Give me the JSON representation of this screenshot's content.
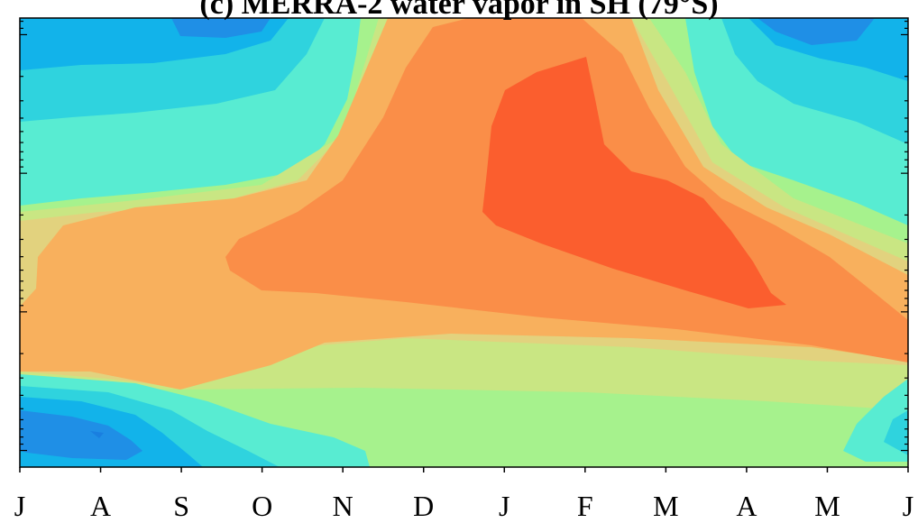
{
  "chart_data": {
    "type": "heatmap",
    "title": "(c) MERRA-2 water vapor in SH (79°S)",
    "x_tick_labels": [
      "J",
      "A",
      "S",
      "O",
      "N",
      "D",
      "J",
      "F",
      "M",
      "A",
      "M",
      "J"
    ],
    "colormap": [
      "#1f8fe6",
      "#12b3ea",
      "#2fd3de",
      "#58ecd2",
      "#7ef6b9",
      "#a6f28d",
      "#c9e683",
      "#e2d27e",
      "#f8b05d",
      "#fa8e48",
      "#fb5e2e"
    ]
  }
}
